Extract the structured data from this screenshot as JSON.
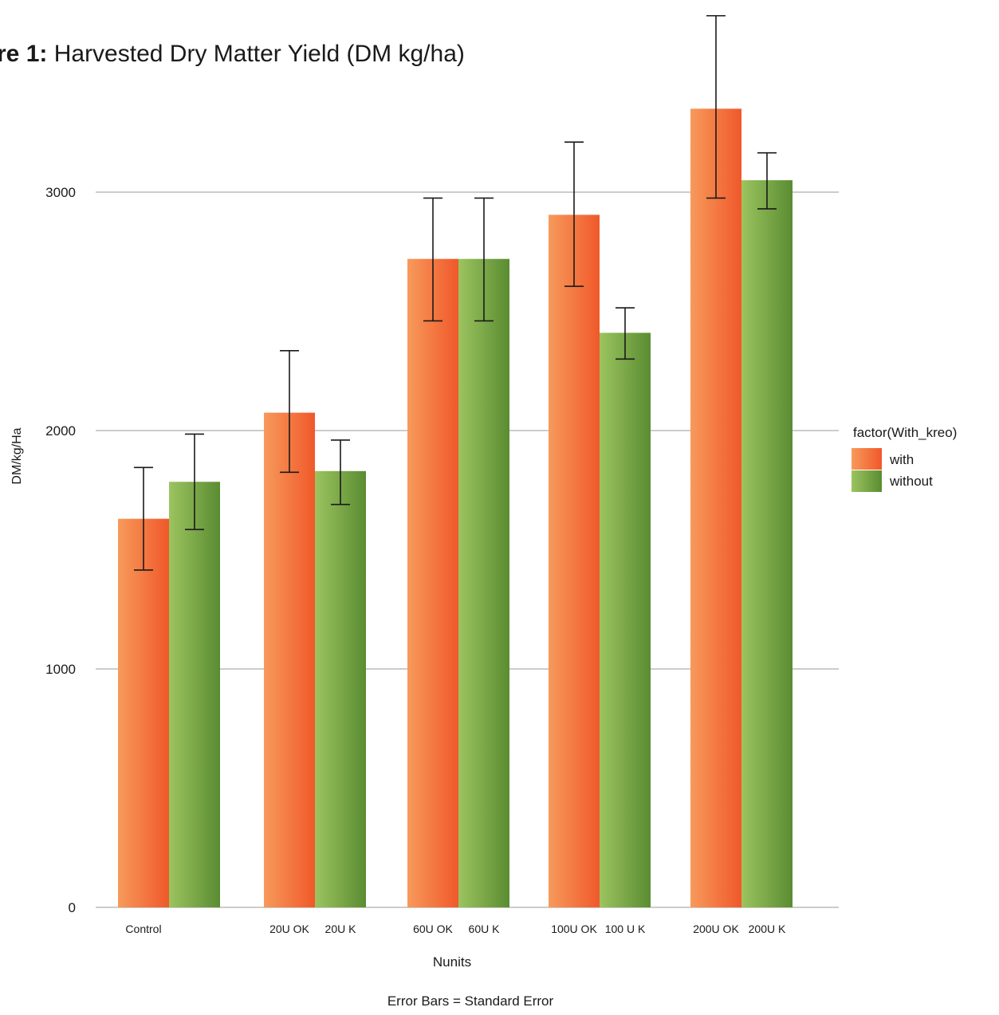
{
  "chart_data": {
    "type": "bar",
    "title_prefix": "re 1:",
    "title_text": "Harvested Dry Matter Yield (DM kg/ha)",
    "xlabel": "Nunits",
    "ylabel": "DM/kg/Ha",
    "footnote": "Error Bars = Standard Error",
    "ylim": [
      0,
      3340
    ],
    "yticks": [
      0,
      1000,
      2000,
      3000
    ],
    "grid": true,
    "legend_title": "factor(With_kreo)",
    "legend_position": "right",
    "groups": [
      {
        "bars": [
          {
            "label": "Control",
            "series": "with",
            "value": 1630,
            "err_low": 1415,
            "err_high": 1845
          },
          {
            "label": "",
            "series": "without",
            "value": 1785,
            "err_low": 1585,
            "err_high": 1985
          }
        ]
      },
      {
        "bars": [
          {
            "label": "20U OK",
            "series": "with",
            "value": 2075,
            "err_low": 1825,
            "err_high": 2335
          },
          {
            "label": "20U K",
            "series": "without",
            "value": 1830,
            "err_low": 1690,
            "err_high": 1960
          }
        ]
      },
      {
        "bars": [
          {
            "label": "60U OK",
            "series": "with",
            "value": 2720,
            "err_low": 2460,
            "err_high": 2975
          },
          {
            "label": "60U K",
            "series": "without",
            "value": 2720,
            "err_low": 2460,
            "err_high": 2975
          }
        ]
      },
      {
        "bars": [
          {
            "label": "100U OK",
            "series": "with",
            "value": 2905,
            "err_low": 2605,
            "err_high": 3210
          },
          {
            "label": "100 U K",
            "series": "without",
            "value": 2410,
            "err_low": 2300,
            "err_high": 2515
          }
        ]
      },
      {
        "bars": [
          {
            "label": "200U OK",
            "series": "with",
            "value": 3350,
            "err_low": 2975,
            "err_high": 3740
          },
          {
            "label": "200U K",
            "series": "without",
            "value": 3050,
            "err_low": 2930,
            "err_high": 3165
          }
        ]
      }
    ],
    "series": [
      {
        "name": "with",
        "color_light": "#f79a5b",
        "color_dark": "#f0582a"
      },
      {
        "name": "without",
        "color_light": "#9cc45f",
        "color_dark": "#5a8c32"
      }
    ]
  }
}
